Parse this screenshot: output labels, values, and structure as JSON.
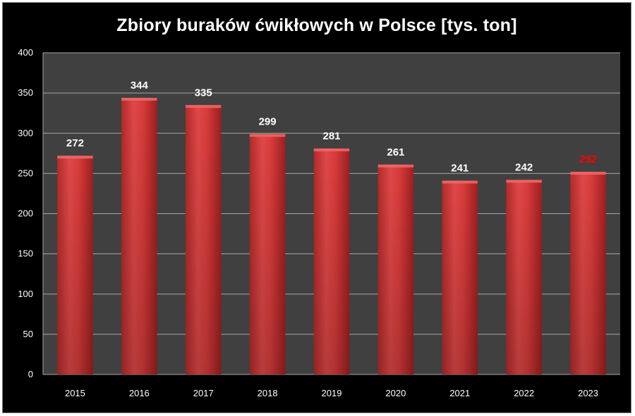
{
  "chart_data": {
    "type": "bar",
    "title": "Zbiory buraków ćwikłowych w Polsce [tys. ton]",
    "categories": [
      "2015",
      "2016",
      "2017",
      "2018",
      "2019",
      "2020",
      "2021",
      "2022",
      "2023"
    ],
    "values": [
      272,
      344,
      335,
      299,
      281,
      261,
      241,
      242,
      252
    ],
    "highlighted_category": "2023",
    "ylim": [
      0,
      400
    ],
    "yticks": [
      0,
      50,
      100,
      150,
      200,
      250,
      300,
      350,
      400
    ],
    "grid": true,
    "legend": "none",
    "colors": {
      "background": "#000000",
      "plot_area": "#404040",
      "gridline": "#a6a6a6",
      "bar": "#d83b3b",
      "bar_dark": "#9e1f1f",
      "label": "#ffffff",
      "highlight_label": "#ff0000"
    }
  }
}
